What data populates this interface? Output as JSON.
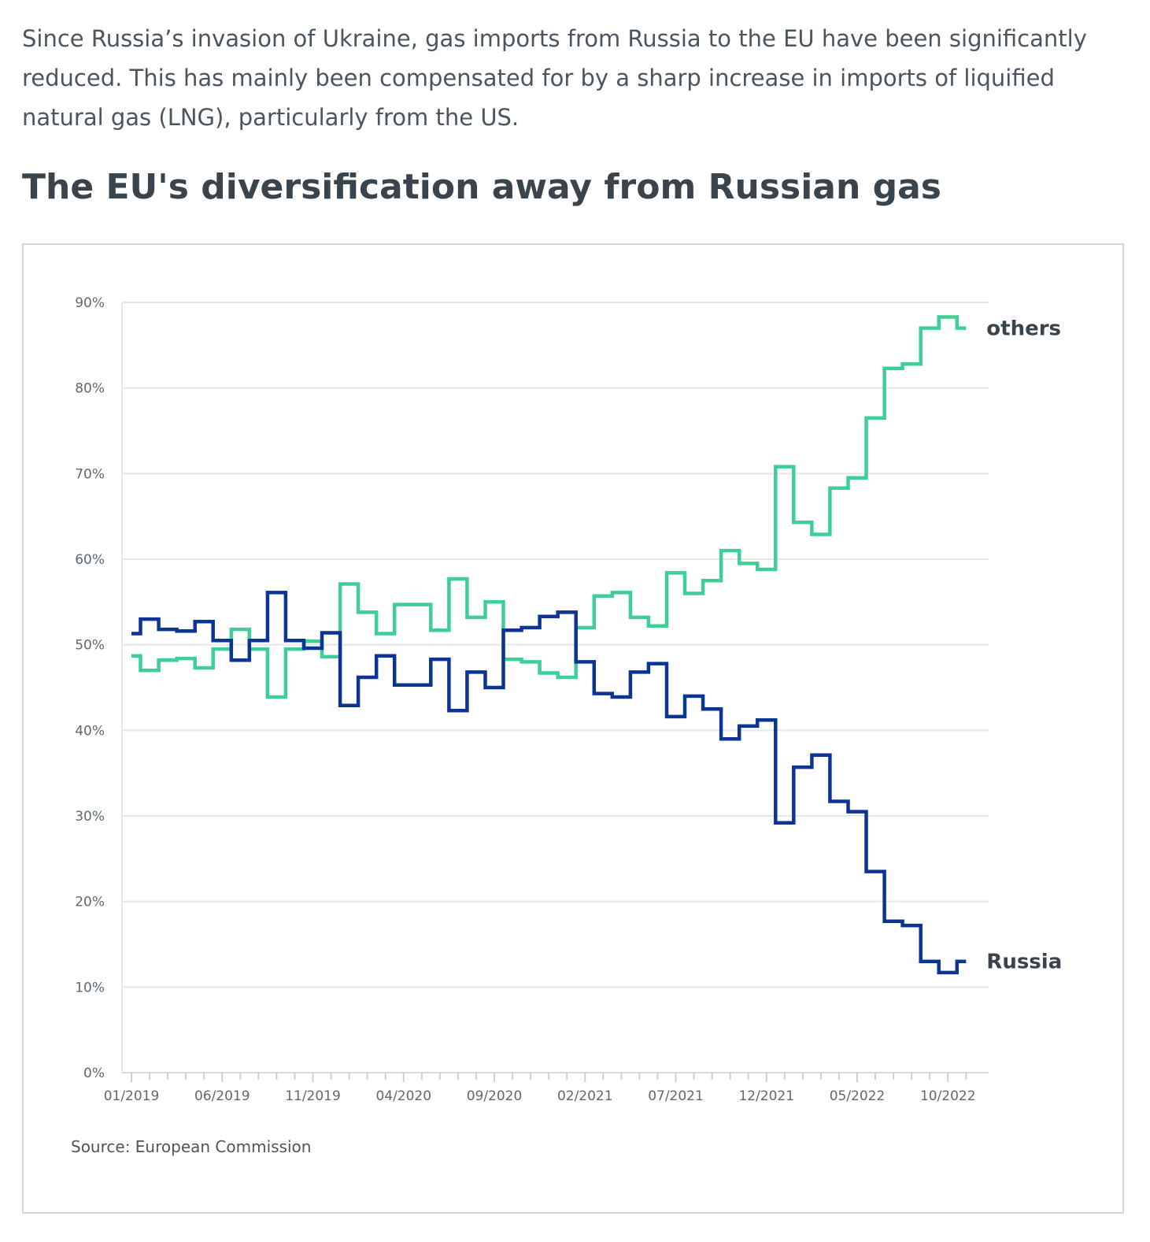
{
  "intro": {
    "line1": "Since Russia’s invasion of Ukraine, gas imports from Russia to the EU have been significantly",
    "line2": "reduced. This has mainly been compensated for by a sharp increase in imports of liquified",
    "line3": "natural gas (LNG), particularly from the US."
  },
  "heading": "The EU's diversification away from Russian gas",
  "source": "Source: European Commission",
  "chart_data": {
    "type": "line",
    "step": true,
    "title": "",
    "xlabel": "",
    "ylabel": "",
    "ylim": [
      0,
      90
    ],
    "yticks": [
      0,
      10,
      20,
      30,
      40,
      50,
      60,
      70,
      80,
      90
    ],
    "ytick_labels": [
      "0%",
      "10%",
      "20%",
      "30%",
      "40%",
      "50%",
      "60%",
      "70%",
      "80%",
      "90%"
    ],
    "xtick_labels": [
      "01/2019",
      "06/2019",
      "11/2019",
      "04/2020",
      "09/2020",
      "02/2021",
      "07/2021",
      "12/2021",
      "05/2022",
      "10/2022"
    ],
    "x": [
      "01/2019",
      "02/2019",
      "03/2019",
      "04/2019",
      "05/2019",
      "06/2019",
      "07/2019",
      "08/2019",
      "09/2019",
      "10/2019",
      "11/2019",
      "12/2019",
      "01/2020",
      "02/2020",
      "03/2020",
      "04/2020",
      "05/2020",
      "06/2020",
      "07/2020",
      "08/2020",
      "09/2020",
      "10/2020",
      "11/2020",
      "12/2020",
      "01/2021",
      "02/2021",
      "03/2021",
      "04/2021",
      "05/2021",
      "06/2021",
      "07/2021",
      "08/2021",
      "09/2021",
      "10/2021",
      "11/2021",
      "12/2021",
      "01/2022",
      "02/2022",
      "03/2022",
      "04/2022",
      "05/2022",
      "06/2022",
      "07/2022",
      "08/2022",
      "09/2022",
      "10/2022",
      "11/2022"
    ],
    "grid": true,
    "legend": "end-of-line labels",
    "series": [
      {
        "name": "others",
        "color": "#3ecf97",
        "values": [
          48.7,
          47.0,
          48.2,
          48.4,
          47.3,
          49.5,
          51.8,
          49.5,
          43.9,
          49.5,
          50.4,
          48.6,
          57.1,
          53.8,
          51.3,
          54.7,
          54.7,
          51.7,
          57.7,
          53.2,
          55.0,
          48.3,
          48.0,
          46.7,
          46.2,
          52.0,
          55.7,
          56.1,
          53.2,
          52.2,
          58.4,
          56.0,
          57.5,
          61.0,
          59.5,
          58.8,
          70.8,
          64.3,
          62.9,
          68.3,
          69.5,
          76.5,
          82.3,
          82.8,
          87.0,
          88.3,
          87.0
        ]
      },
      {
        "name": "Russia",
        "color": "#0c3593",
        "values": [
          51.3,
          53.0,
          51.8,
          51.6,
          52.7,
          50.5,
          48.2,
          50.5,
          56.1,
          50.5,
          49.6,
          51.4,
          42.9,
          46.2,
          48.7,
          45.3,
          45.3,
          48.3,
          42.3,
          46.8,
          45.0,
          51.7,
          52.0,
          53.3,
          53.8,
          48.0,
          44.3,
          43.9,
          46.8,
          47.8,
          41.6,
          44.0,
          42.5,
          39.0,
          40.5,
          41.2,
          29.2,
          35.7,
          37.1,
          31.7,
          30.5,
          23.5,
          17.7,
          17.2,
          13.0,
          11.7,
          13.0
        ]
      }
    ]
  }
}
